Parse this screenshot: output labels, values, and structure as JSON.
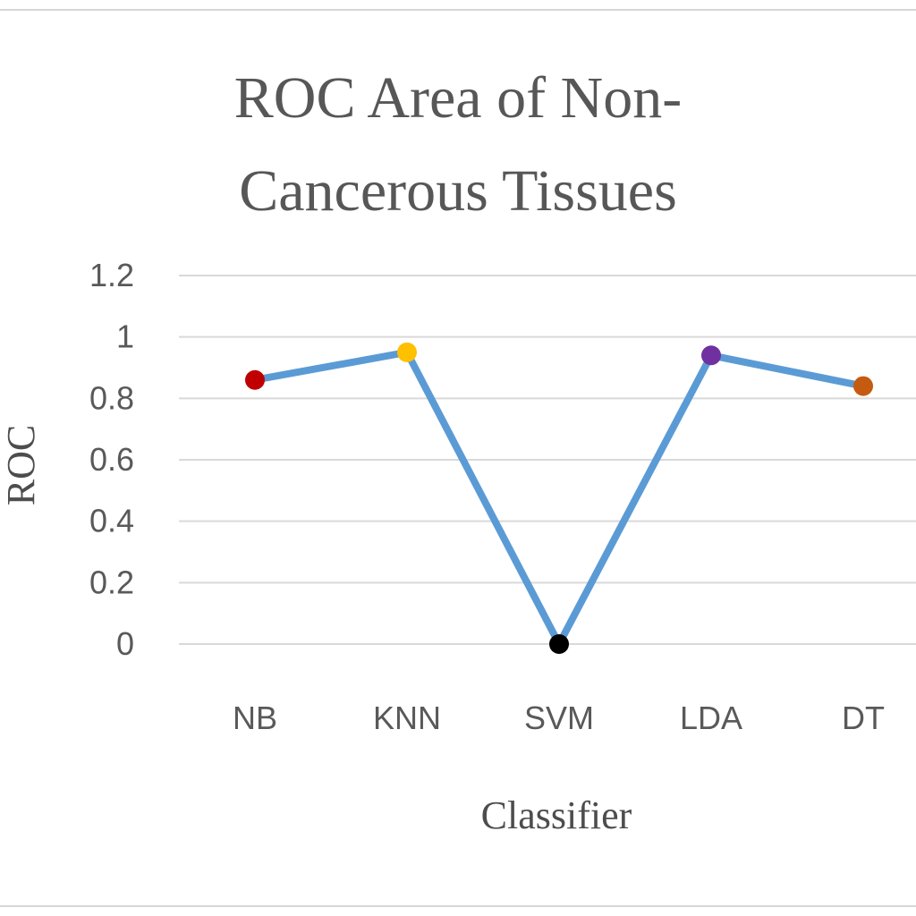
{
  "chart_data": {
    "type": "line",
    "title_lines": [
      "ROC Area of Non-",
      "Cancerous Tissues"
    ],
    "xlabel": "Classifier",
    "ylabel": "ROC",
    "categories": [
      "NB",
      "KNN",
      "SVM",
      "LDA",
      "DT"
    ],
    "series": [
      {
        "values": [
          0.86,
          0.95,
          0.0,
          0.94,
          0.84
        ],
        "line_color": "#5b9bd5",
        "marker_colors": [
          "#c00000",
          "#ffc000",
          "#000000",
          "#7030a0",
          "#c55a11"
        ]
      }
    ],
    "ylim": [
      0,
      1.2
    ],
    "yticks": [
      "0",
      "0.2",
      "0.4",
      "0.6",
      "0.8",
      "1",
      "1.2"
    ],
    "grid": true,
    "gridline_color": "#d9d9d9"
  }
}
